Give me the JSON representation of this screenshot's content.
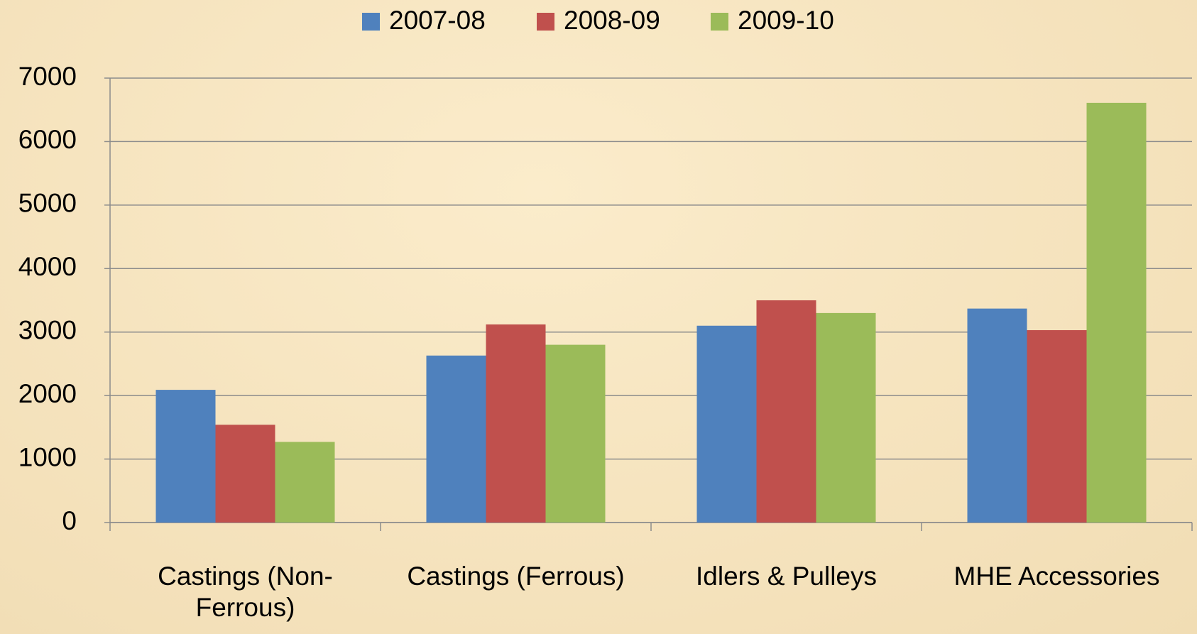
{
  "chart_data": {
    "type": "bar",
    "categories": [
      "Castings (Non-Ferrous)",
      "Castings (Ferrous)",
      "Idlers & Pulleys",
      "MHE Accessories"
    ],
    "series": [
      {
        "name": "2007-08",
        "color": "#4f81bd",
        "values": [
          2090,
          2630,
          3100,
          3370
        ]
      },
      {
        "name": "2008-09",
        "color": "#c0504d",
        "values": [
          1540,
          3120,
          3500,
          3030
        ]
      },
      {
        "name": "2009-10",
        "color": "#9bbb59",
        "values": [
          1270,
          2800,
          3300,
          6610
        ]
      }
    ],
    "ylim": [
      0,
      7000
    ],
    "yticks": [
      0,
      1000,
      2000,
      3000,
      4000,
      5000,
      6000,
      7000
    ],
    "grid": true,
    "legend": "top"
  }
}
